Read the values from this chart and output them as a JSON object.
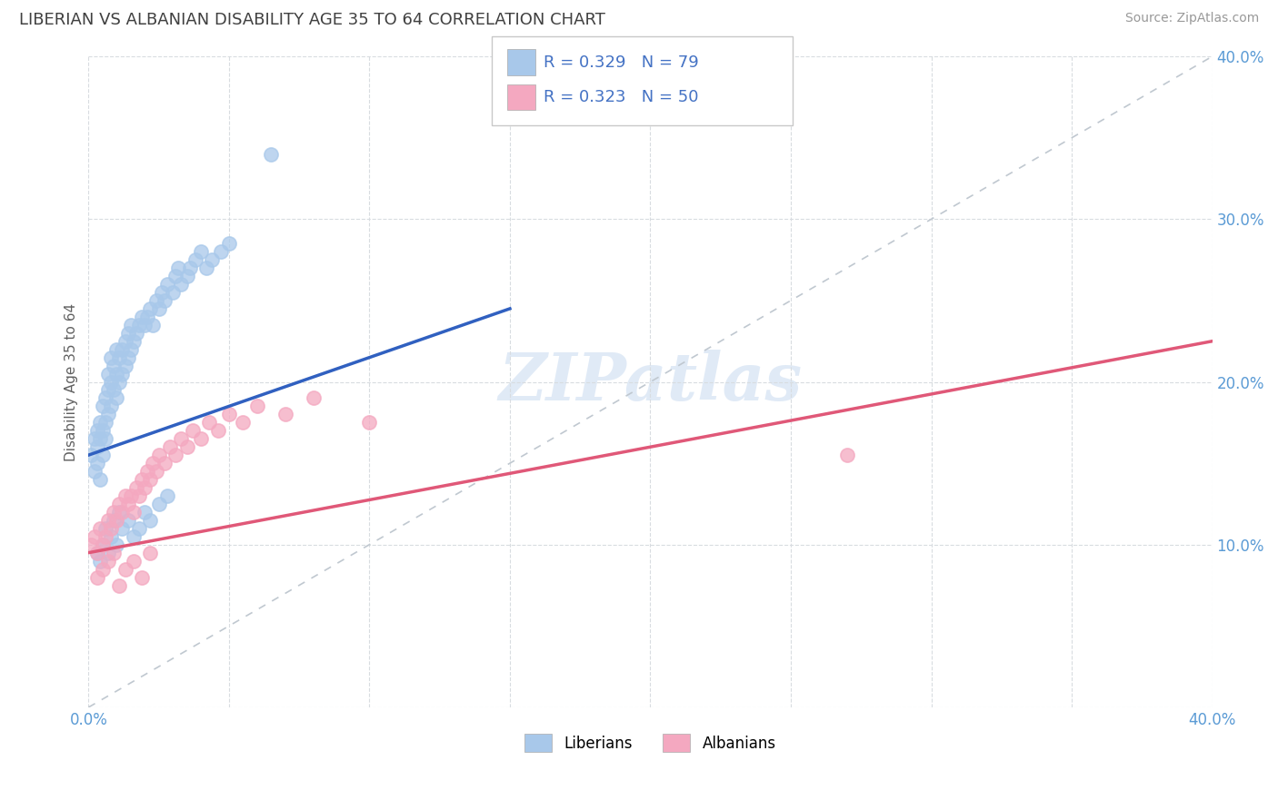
{
  "title": "LIBERIAN VS ALBANIAN DISABILITY AGE 35 TO 64 CORRELATION CHART",
  "source": "Source: ZipAtlas.com",
  "ylabel": "Disability Age 35 to 64",
  "xlim": [
    0.0,
    0.4
  ],
  "ylim": [
    0.0,
    0.4
  ],
  "liberian_color": "#a8c8ea",
  "albanian_color": "#f4a8c0",
  "liberian_line_color": "#3060c0",
  "albanian_line_color": "#e05878",
  "ref_line_color": "#c0c8d0",
  "legend_R1": "R = 0.329",
  "legend_N1": "N = 79",
  "legend_R2": "R = 0.323",
  "legend_N2": "N = 50",
  "R_liberian": 0.329,
  "N_liberian": 79,
  "R_albanian": 0.323,
  "N_albanian": 50,
  "liberian_x": [
    0.001,
    0.002,
    0.002,
    0.003,
    0.003,
    0.003,
    0.004,
    0.004,
    0.004,
    0.005,
    0.005,
    0.005,
    0.006,
    0.006,
    0.006,
    0.007,
    0.007,
    0.007,
    0.008,
    0.008,
    0.008,
    0.009,
    0.009,
    0.01,
    0.01,
    0.01,
    0.011,
    0.011,
    0.012,
    0.012,
    0.013,
    0.013,
    0.014,
    0.014,
    0.015,
    0.015,
    0.016,
    0.017,
    0.018,
    0.019,
    0.02,
    0.021,
    0.022,
    0.023,
    0.024,
    0.025,
    0.026,
    0.027,
    0.028,
    0.03,
    0.031,
    0.032,
    0.033,
    0.035,
    0.036,
    0.038,
    0.04,
    0.042,
    0.044,
    0.047,
    0.05,
    0.003,
    0.004,
    0.005,
    0.006,
    0.007,
    0.008,
    0.009,
    0.01,
    0.011,
    0.012,
    0.014,
    0.016,
    0.018,
    0.02,
    0.022,
    0.025,
    0.028,
    0.065
  ],
  "liberian_y": [
    0.155,
    0.145,
    0.165,
    0.15,
    0.16,
    0.17,
    0.165,
    0.14,
    0.175,
    0.155,
    0.17,
    0.185,
    0.165,
    0.175,
    0.19,
    0.18,
    0.195,
    0.205,
    0.185,
    0.2,
    0.215,
    0.195,
    0.21,
    0.19,
    0.205,
    0.22,
    0.2,
    0.215,
    0.205,
    0.22,
    0.21,
    0.225,
    0.215,
    0.23,
    0.22,
    0.235,
    0.225,
    0.23,
    0.235,
    0.24,
    0.235,
    0.24,
    0.245,
    0.235,
    0.25,
    0.245,
    0.255,
    0.25,
    0.26,
    0.255,
    0.265,
    0.27,
    0.26,
    0.265,
    0.27,
    0.275,
    0.28,
    0.27,
    0.275,
    0.28,
    0.285,
    0.095,
    0.09,
    0.1,
    0.11,
    0.095,
    0.105,
    0.115,
    0.1,
    0.12,
    0.11,
    0.115,
    0.105,
    0.11,
    0.12,
    0.115,
    0.125,
    0.13,
    0.34
  ],
  "albanian_x": [
    0.001,
    0.002,
    0.003,
    0.004,
    0.005,
    0.006,
    0.007,
    0.008,
    0.009,
    0.01,
    0.011,
    0.012,
    0.013,
    0.014,
    0.015,
    0.016,
    0.017,
    0.018,
    0.019,
    0.02,
    0.021,
    0.022,
    0.023,
    0.024,
    0.025,
    0.027,
    0.029,
    0.031,
    0.033,
    0.035,
    0.037,
    0.04,
    0.043,
    0.046,
    0.05,
    0.055,
    0.06,
    0.07,
    0.08,
    0.1,
    0.003,
    0.005,
    0.007,
    0.009,
    0.011,
    0.013,
    0.016,
    0.019,
    0.022,
    0.27
  ],
  "albanian_y": [
    0.1,
    0.105,
    0.095,
    0.11,
    0.1,
    0.105,
    0.115,
    0.11,
    0.12,
    0.115,
    0.125,
    0.12,
    0.13,
    0.125,
    0.13,
    0.12,
    0.135,
    0.13,
    0.14,
    0.135,
    0.145,
    0.14,
    0.15,
    0.145,
    0.155,
    0.15,
    0.16,
    0.155,
    0.165,
    0.16,
    0.17,
    0.165,
    0.175,
    0.17,
    0.18,
    0.175,
    0.185,
    0.18,
    0.19,
    0.175,
    0.08,
    0.085,
    0.09,
    0.095,
    0.075,
    0.085,
    0.09,
    0.08,
    0.095,
    0.155
  ],
  "lib_trend_x0": 0.0,
  "lib_trend_x1": 0.15,
  "lib_trend_y0": 0.155,
  "lib_trend_y1": 0.245,
  "alb_trend_x0": 0.0,
  "alb_trend_x1": 0.4,
  "alb_trend_y0": 0.095,
  "alb_trend_y1": 0.225,
  "watermark_text": "ZIPatlas",
  "background_color": "#ffffff",
  "grid_color": "#d8dce0",
  "title_color": "#404040",
  "axis_label_color": "#5b9bd5",
  "legend_value_color": "#4472c4"
}
